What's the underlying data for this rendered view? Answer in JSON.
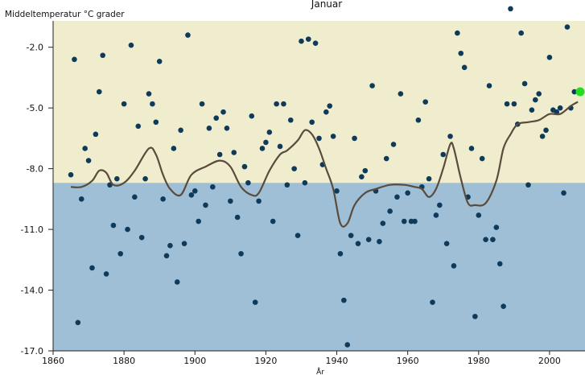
{
  "chart_data": {
    "type": "scatter",
    "title": "Januar",
    "ylabel": "Middeltemperatur °C grader",
    "xlabel": "År",
    "xlim": [
      1860,
      2010
    ],
    "ylim": [
      -17.0,
      -0.7
    ],
    "xticks": [
      1860,
      1880,
      1900,
      1920,
      1940,
      1960,
      1980,
      2000
    ],
    "yticks": [
      -17.0,
      -14.0,
      -11.0,
      -8.0,
      -5.0,
      -2.0
    ],
    "ytick_labels": [
      "-17.0",
      "-14.0",
      "-11.0",
      "-8.0",
      "-5.0",
      "-2.0"
    ],
    "background_split_value": -8.7,
    "colors": {
      "upper_band": "#f0edcf",
      "lower_band": "#9fbfd6",
      "points": "#103a5a",
      "smooth": "#5a4c3c",
      "highlight": "#22dd22"
    },
    "series": [
      {
        "kind": "points",
        "x": [
          1865,
          1866,
          1867,
          1868,
          1869,
          1870,
          1871,
          1872,
          1873,
          1874,
          1875,
          1876,
          1877,
          1878,
          1879,
          1880,
          1881,
          1882,
          1883,
          1884,
          1885,
          1886,
          1887,
          1888,
          1889,
          1890,
          1891,
          1892,
          1893,
          1894,
          1895,
          1896,
          1897,
          1898,
          1899,
          1900,
          1901,
          1902,
          1903,
          1904,
          1905,
          1906,
          1907,
          1908,
          1909,
          1910,
          1911,
          1912,
          1913,
          1914,
          1915,
          1916,
          1917,
          1918,
          1919,
          1920,
          1921,
          1922,
          1923,
          1924,
          1925,
          1926,
          1927,
          1928,
          1929,
          1930,
          1931,
          1932,
          1933,
          1934,
          1935,
          1936,
          1937,
          1938,
          1939,
          1940,
          1941,
          1942,
          1943,
          1944,
          1945,
          1946,
          1947,
          1948,
          1949,
          1950,
          1951,
          1952,
          1953,
          1954,
          1955,
          1956,
          1957,
          1958,
          1959,
          1960,
          1961,
          1962,
          1963,
          1964,
          1965,
          1966,
          1967,
          1968,
          1969,
          1970,
          1971,
          1972,
          1973,
          1974,
          1975,
          1976,
          1977,
          1978,
          1979,
          1980,
          1981,
          1982,
          1983,
          1984,
          1985,
          1986,
          1987,
          1988,
          1989,
          1990,
          1991,
          1992,
          1993,
          1994,
          1995,
          1996,
          1997,
          1998,
          1999,
          2000,
          2001,
          2002,
          2003,
          2004,
          2005,
          2006,
          2007
        ],
        "y": [
          -8.3,
          -2.6,
          -15.6,
          -9.5,
          -7.0,
          -7.6,
          -12.9,
          -6.3,
          -4.2,
          -2.4,
          -13.2,
          -8.8,
          -10.8,
          -8.5,
          -12.2,
          -4.8,
          -11.0,
          -1.9,
          -9.4,
          -5.9,
          -11.4,
          -8.5,
          -4.3,
          -4.8,
          -5.7,
          -2.7,
          -9.5,
          -12.3,
          -11.8,
          -7.0,
          -13.6,
          -6.1,
          -11.7,
          -1.4,
          -9.3,
          -9.1,
          -10.6,
          -4.8,
          -9.8,
          -6.0,
          -8.9,
          -5.5,
          -7.3,
          -5.2,
          -6.0,
          -9.6,
          -7.2,
          -10.4,
          -12.2,
          -7.9,
          -8.7,
          -5.4,
          -14.6,
          -9.6,
          -7.0,
          -6.7,
          -6.2,
          -10.6,
          -4.8,
          -6.9,
          -4.8,
          -8.8,
          -5.6,
          -8.0,
          -11.3,
          -1.7,
          -8.7,
          -1.6,
          -5.7,
          -1.8,
          -6.5,
          -7.8,
          -5.2,
          -4.9,
          -6.4,
          -9.1,
          -12.2,
          -14.5,
          -16.7,
          -11.3,
          -6.5,
          -11.7,
          -8.4,
          -8.1,
          -11.5,
          -3.9,
          -9.1,
          -11.6,
          -10.7,
          -7.5,
          -10.1,
          -6.8,
          -9.4,
          -4.3,
          -10.6,
          -9.2,
          -10.6,
          -10.6,
          -5.6,
          -8.9,
          -4.7,
          -8.5,
          -14.6,
          -10.3,
          -9.8,
          -7.3,
          -11.7,
          -6.4,
          -12.8,
          -1.3,
          -2.3,
          -3.0,
          -9.4,
          -7.0,
          -15.3,
          -10.3,
          -7.5,
          -11.5,
          -3.9,
          -11.5,
          -10.9,
          -12.7,
          -14.8,
          -4.8,
          -0.1,
          -4.8,
          -5.8,
          -1.3,
          -3.8,
          -8.8,
          -5.1,
          -4.6,
          -4.3,
          -6.4,
          -6.1,
          -2.5,
          -5.1,
          -5.2,
          -5.0,
          -9.2,
          -1.0,
          -5.0,
          -4.2
        ]
      },
      {
        "kind": "smooth",
        "x": [
          1865,
          1868,
          1871,
          1873,
          1875,
          1877,
          1880,
          1883,
          1887,
          1889,
          1891,
          1893,
          1896,
          1899,
          1903,
          1907,
          1910,
          1913,
          1916,
          1918,
          1921,
          1924,
          1926,
          1929,
          1931,
          1933,
          1935,
          1937,
          1939,
          1941,
          1943,
          1945,
          1948,
          1951,
          1955,
          1959,
          1962,
          1964,
          1966,
          1968,
          1970,
          1972,
          1973,
          1975,
          1977,
          1979,
          1982,
          1985,
          1987,
          1989,
          1991,
          1994,
          1997,
          2000,
          2003,
          2006,
          2008
        ],
        "y": [
          -8.9,
          -8.9,
          -8.6,
          -8.1,
          -8.2,
          -8.8,
          -8.7,
          -8.1,
          -7.0,
          -7.3,
          -8.3,
          -9.0,
          -9.3,
          -8.3,
          -7.9,
          -7.6,
          -7.9,
          -8.9,
          -9.3,
          -9.2,
          -8.1,
          -7.3,
          -7.1,
          -6.6,
          -6.1,
          -6.3,
          -7.0,
          -8.0,
          -9.0,
          -10.7,
          -10.7,
          -9.8,
          -9.2,
          -9.0,
          -8.8,
          -8.8,
          -8.9,
          -9.0,
          -9.4,
          -9.0,
          -8.0,
          -6.8,
          -7.0,
          -8.5,
          -9.7,
          -9.8,
          -9.7,
          -8.6,
          -7.0,
          -6.3,
          -5.8,
          -5.7,
          -5.6,
          -5.3,
          -5.3,
          -4.9,
          -4.7
        ]
      },
      {
        "kind": "highlight",
        "x": [
          2009
        ],
        "y": [
          -4.2
        ]
      }
    ]
  }
}
